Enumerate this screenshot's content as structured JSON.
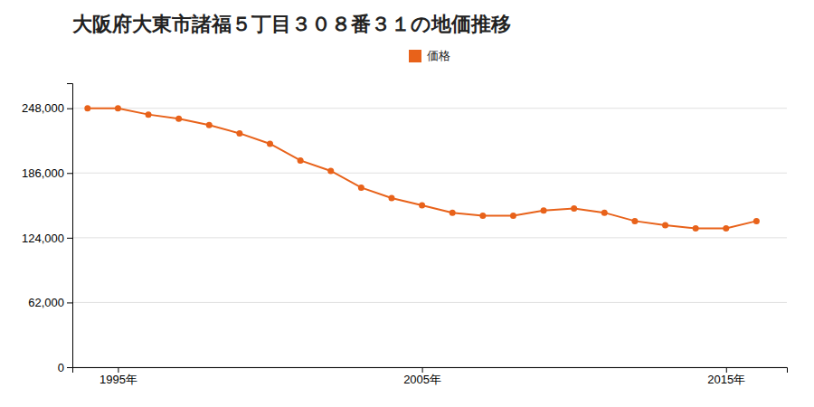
{
  "chart_data": {
    "type": "line",
    "title": "大阪府大東市諸福５丁目３０８番３１の地価推移",
    "x": [
      1994,
      1995,
      1996,
      1997,
      1998,
      1999,
      2000,
      2001,
      2002,
      2003,
      2004,
      2005,
      2006,
      2007,
      2008,
      2009,
      2010,
      2011,
      2012,
      2013,
      2014,
      2015,
      2016
    ],
    "series": [
      {
        "name": "価格",
        "color": "#E8621A",
        "marker": "circle",
        "values": [
          248000,
          248000,
          242000,
          238000,
          232000,
          224000,
          214000,
          198000,
          188000,
          172000,
          162000,
          155000,
          148000,
          145000,
          145000,
          150000,
          152000,
          148000,
          140000,
          136000,
          133000,
          133000,
          140000
        ]
      }
    ],
    "xlim": [
      1993.5,
      2017
    ],
    "xticks": [
      {
        "value": 1995,
        "label": "1995年"
      },
      {
        "value": 2005,
        "label": "2005年"
      },
      {
        "value": 2015,
        "label": "2015年"
      }
    ],
    "ylim": [
      0,
      272000
    ],
    "yticks": [
      0,
      {
        "value": 62000,
        "label": "62,000"
      },
      {
        "value": 124000,
        "label": "124,000"
      },
      {
        "value": 186000,
        "label": "186,000"
      },
      {
        "value": 248000,
        "label": "248,000"
      }
    ],
    "grid": "y",
    "legend": "top"
  }
}
